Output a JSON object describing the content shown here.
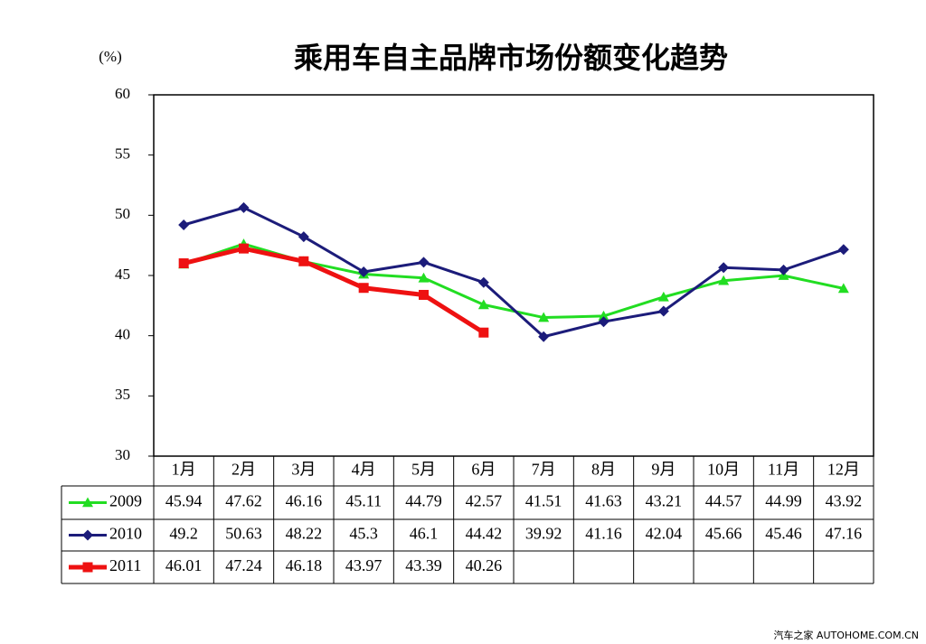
{
  "chart_data": {
    "type": "line",
    "title": "乘用车自主品牌市场份额变化趋势",
    "y_unit": "(%)",
    "categories": [
      "1月",
      "2月",
      "3月",
      "4月",
      "5月",
      "6月",
      "7月",
      "8月",
      "9月",
      "10月",
      "11月",
      "12月"
    ],
    "series": [
      {
        "name": "2009",
        "color": "#22dd22",
        "marker": "triangle",
        "values": [
          45.94,
          47.62,
          46.16,
          45.11,
          44.79,
          42.57,
          41.51,
          41.63,
          43.21,
          44.57,
          44.99,
          43.92
        ]
      },
      {
        "name": "2010",
        "color": "#1c1c7a",
        "marker": "diamond",
        "values": [
          49.2,
          50.63,
          48.22,
          45.3,
          46.1,
          44.42,
          39.92,
          41.16,
          42.04,
          45.66,
          45.46,
          47.16
        ]
      },
      {
        "name": "2011",
        "color": "#ee1111",
        "marker": "square",
        "values": [
          46.01,
          47.24,
          46.18,
          43.97,
          43.39,
          40.26,
          null,
          null,
          null,
          null,
          null,
          null
        ]
      }
    ],
    "ylim": [
      30,
      60
    ],
    "yticks": [
      30,
      35,
      40,
      45,
      50,
      55,
      60
    ],
    "grid": false,
    "watermark": "汽车之家 AUTOHOME.COM.CN"
  }
}
